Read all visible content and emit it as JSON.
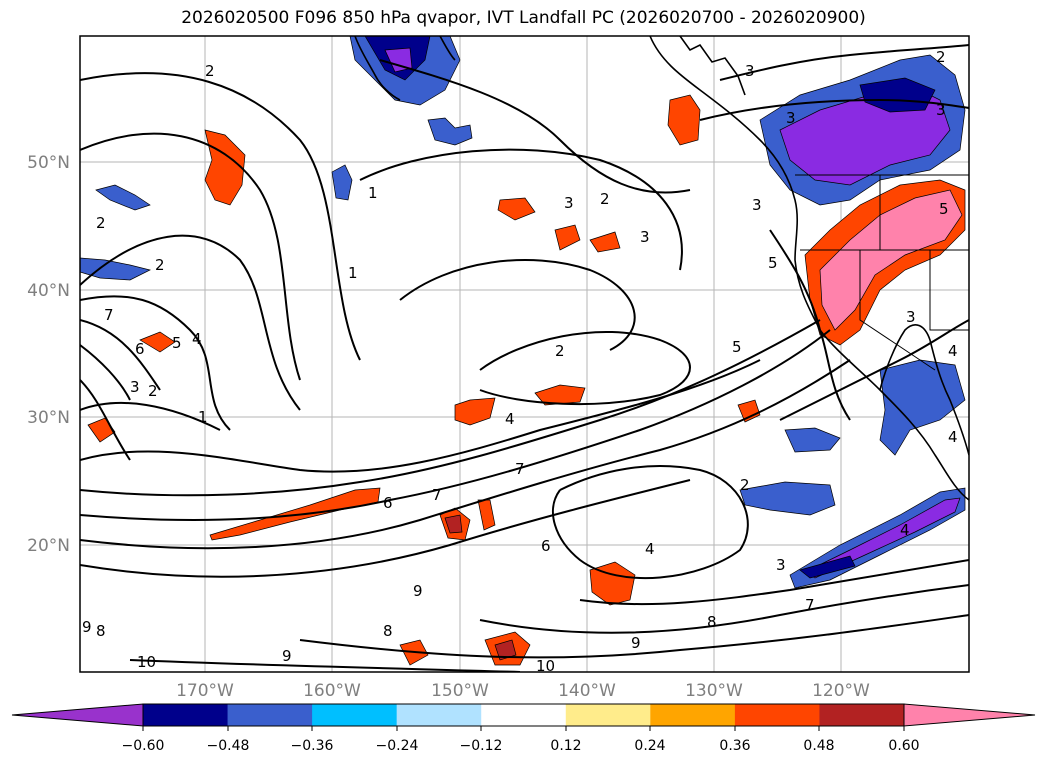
{
  "title": "2026020500 F096 850 hPa qvapor, IVT Landfall PC (2026020700 - 2026020900)",
  "axes": {
    "lat_labels": [
      "50°N",
      "40°N",
      "30°N",
      "20°N"
    ],
    "lon_labels": [
      "170°W",
      "160°W",
      "150°W",
      "140°W",
      "130°W",
      "120°W"
    ]
  },
  "colorbar": {
    "colors": [
      "#8a2be2",
      "#00008b",
      "#3a5fcd",
      "#00bfff",
      "#b0e2ff",
      "#ffffff",
      "#ffec8b",
      "#ffa500",
      "#ff4500",
      "#b22222",
      "#ff82ab"
    ],
    "extend_low_color": "#9932cc",
    "extend_high_color": "#ff82ab",
    "tick_labels": [
      "−0.60",
      "−0.48",
      "−0.36",
      "−0.24",
      "−0.12",
      "0.12",
      "0.24",
      "0.36",
      "0.48",
      "0.60"
    ]
  },
  "contour_labels": [
    "2",
    "2",
    "2",
    "3",
    "3",
    "3",
    "1",
    "1",
    "3",
    "2",
    "2",
    "3",
    "7",
    "6",
    "5",
    "4",
    "3",
    "2",
    "1",
    "2",
    "4",
    "7",
    "6",
    "7",
    "6",
    "4",
    "2",
    "3",
    "7",
    "8",
    "9",
    "9",
    "9",
    "8",
    "8",
    "9",
    "10",
    "10",
    "5",
    "5",
    "4",
    "3",
    "5",
    "4",
    "3",
    "4"
  ]
}
